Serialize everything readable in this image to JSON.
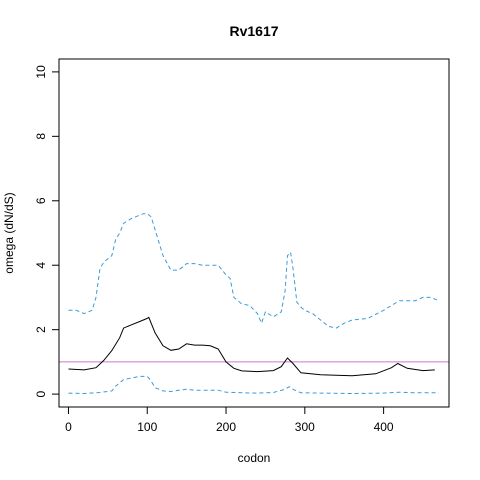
{
  "chart_data": {
    "type": "line",
    "title": "Rv1617",
    "xlabel": "codon",
    "ylabel": "omega (dN/dS)",
    "xlim": [
      -12,
      483
    ],
    "ylim": [
      -0.4,
      10.4
    ],
    "x_ticks": [
      0,
      100,
      200,
      300,
      400
    ],
    "y_ticks": [
      0,
      2,
      4,
      6,
      8,
      10
    ],
    "reference_line": {
      "y": 1,
      "color": "#cc79c4"
    },
    "series": [
      {
        "role": "estimate",
        "color": "#000000",
        "dash": "solid",
        "x": [
          0,
          20,
          35,
          45,
          55,
          65,
          70,
          80,
          90,
          100,
          102,
          110,
          120,
          130,
          140,
          150,
          160,
          170,
          180,
          190,
          200,
          210,
          220,
          240,
          260,
          270,
          278,
          285,
          295,
          320,
          360,
          390,
          410,
          418,
          430,
          450,
          465
        ],
        "y": [
          0.78,
          0.75,
          0.82,
          1.05,
          1.35,
          1.75,
          2.05,
          2.15,
          2.25,
          2.35,
          2.38,
          1.9,
          1.5,
          1.36,
          1.4,
          1.56,
          1.52,
          1.52,
          1.5,
          1.4,
          1.0,
          0.8,
          0.72,
          0.7,
          0.73,
          0.85,
          1.12,
          0.95,
          0.66,
          0.6,
          0.57,
          0.63,
          0.82,
          0.95,
          0.8,
          0.73,
          0.75
        ]
      },
      {
        "role": "upper bound",
        "color": "#3a9ad9",
        "dash": "dashed",
        "x": [
          0,
          10,
          20,
          30,
          35,
          40,
          45,
          55,
          60,
          65,
          70,
          80,
          90,
          95,
          100,
          105,
          110,
          120,
          130,
          140,
          150,
          160,
          170,
          180,
          190,
          200,
          205,
          210,
          215,
          220,
          230,
          240,
          245,
          250,
          260,
          270,
          275,
          278,
          282,
          285,
          290,
          295,
          300,
          310,
          320,
          330,
          340,
          350,
          360,
          380,
          400,
          420,
          430,
          440,
          450,
          460,
          470
        ],
        "y": [
          2.6,
          2.6,
          2.5,
          2.6,
          3.0,
          3.9,
          4.1,
          4.3,
          4.8,
          5.0,
          5.3,
          5.45,
          5.55,
          5.6,
          5.6,
          5.5,
          5.1,
          4.3,
          3.85,
          3.85,
          4.05,
          4.05,
          4.0,
          4.0,
          4.0,
          3.7,
          3.6,
          3.0,
          2.9,
          2.8,
          2.75,
          2.5,
          2.2,
          2.55,
          2.4,
          2.55,
          3.2,
          4.3,
          4.4,
          3.9,
          2.85,
          2.7,
          2.6,
          2.5,
          2.3,
          2.1,
          2.05,
          2.2,
          2.3,
          2.35,
          2.6,
          2.9,
          2.9,
          2.9,
          3.0,
          3.0,
          2.9
        ]
      },
      {
        "role": "lower bound",
        "color": "#3a9ad9",
        "dash": "dashed",
        "x": [
          0,
          20,
          40,
          55,
          60,
          65,
          70,
          80,
          90,
          100,
          102,
          105,
          110,
          120,
          130,
          140,
          150,
          160,
          170,
          180,
          190,
          200,
          220,
          240,
          260,
          275,
          280,
          285,
          295,
          320,
          360,
          400,
          420,
          440,
          470
        ],
        "y": [
          0.03,
          0.02,
          0.05,
          0.1,
          0.25,
          0.35,
          0.45,
          0.5,
          0.55,
          0.55,
          0.5,
          0.4,
          0.2,
          0.1,
          0.08,
          0.12,
          0.15,
          0.12,
          0.12,
          0.12,
          0.12,
          0.06,
          0.04,
          0.03,
          0.05,
          0.15,
          0.23,
          0.15,
          0.04,
          0.03,
          0.02,
          0.03,
          0.06,
          0.04,
          0.04
        ]
      }
    ]
  }
}
